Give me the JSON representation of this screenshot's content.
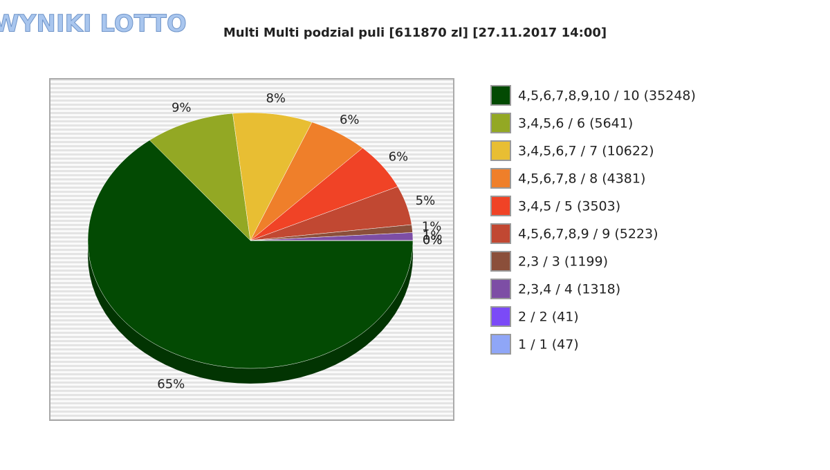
{
  "logo": "WYNIKI LOTTO",
  "chart_data": {
    "type": "pie",
    "title": "Multi Multi podzial puli [611870 zl] [27.11.2017 14:00]",
    "categories": [
      "4,5,6,7,8,9,10 / 10 (35248)",
      "3,4,5,6 / 6 (5641)",
      "3,4,5,6,7 / 7 (10622)",
      "4,5,6,7,8 / 8 (4381)",
      "3,4,5 / 5 (3503)",
      "4,5,6,7,8,9 / 9 (5223)",
      "2,3 / 3 (1199)",
      "2,3,4 / 4 (1318)",
      "2 / 2 (41)",
      "1 / 1 (47)"
    ],
    "values": [
      65,
      9,
      8,
      6,
      6,
      5,
      1,
      1,
      0,
      0
    ],
    "value_labels": [
      "65%",
      "9%",
      "8%",
      "6%",
      "6%",
      "5%",
      "1%",
      "1%",
      "0%",
      "0%"
    ],
    "colors": [
      "#034a03",
      "#93a824",
      "#e8be33",
      "#ef7f2a",
      "#f04326",
      "#c14832",
      "#8b4f3a",
      "#7d4ea5",
      "#7b4af7",
      "#8fa6f7"
    ],
    "legend": "right"
  }
}
